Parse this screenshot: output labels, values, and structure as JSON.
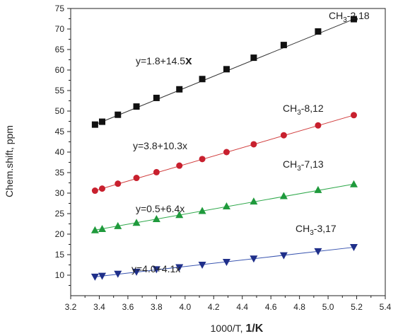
{
  "chart_data": {
    "type": "scatter",
    "xlabel": "1000/T,",
    "xlabel_unit": "1/K",
    "ylabel": "Chem.shift, ppm",
    "xlim": [
      3.2,
      5.4
    ],
    "ylim": [
      5,
      75
    ],
    "x_ticks": [
      "3.2",
      "3.4",
      "3.6",
      "3.8",
      "4.0",
      "4.2",
      "4.4",
      "4.6",
      "4.8",
      "5.0",
      "5.2",
      "5.4"
    ],
    "y_ticks": [
      "10",
      "15",
      "20",
      "25",
      "30",
      "35",
      "40",
      "45",
      "50",
      "55",
      "60",
      "65",
      "70",
      "75"
    ],
    "grid": false,
    "x": [
      3.37,
      3.42,
      3.53,
      3.66,
      3.8,
      3.96,
      4.12,
      4.29,
      4.48,
      4.69,
      4.93,
      5.18
    ],
    "series": [
      {
        "name": "CH3-2,18",
        "label_main": "CH",
        "label_sub": "3",
        "label_rest": "-2,18",
        "equation_main": "y=1.8+14.5",
        "equation_x": "x",
        "marker": "square",
        "color": "#111111",
        "line_color": "#333333",
        "values": [
          46.7,
          47.4,
          49.1,
          51.1,
          53.2,
          55.3,
          57.8,
          60.2,
          63.0,
          66.1,
          69.4,
          72.4
        ]
      },
      {
        "name": "CH3-8,12",
        "label_main": "CH",
        "label_sub": "3",
        "label_rest": "-8,12",
        "equation_main": "y=3.8+10.3x",
        "marker": "circle",
        "color": "#c8202e",
        "line_color": "#d03a3a",
        "values": [
          30.6,
          31.1,
          32.3,
          33.7,
          35.1,
          36.7,
          38.3,
          40.0,
          41.9,
          44.1,
          46.5,
          49.0
        ]
      },
      {
        "name": "CH3-7,13",
        "label_main": "CH",
        "label_sub": "3",
        "label_rest": "-7,13",
        "equation_main": "y=0.5+6.4x",
        "marker": "triangle-up",
        "color": "#1f9a3c",
        "line_color": "#2ea84a",
        "values": [
          21.0,
          21.3,
          22.0,
          22.8,
          23.7,
          24.7,
          25.7,
          26.8,
          28.0,
          29.3,
          30.8,
          32.2
        ]
      },
      {
        "name": "CH3-3,17",
        "label_main": "CH",
        "label_sub": "3",
        "label_rest": "-3,17",
        "equation_main": "y=4.0+4.1x",
        "marker": "triangle-down",
        "color": "#1f2f8a",
        "line_color": "#3a55b0",
        "values": [
          9.6,
          9.8,
          10.3,
          10.8,
          11.4,
          11.9,
          12.5,
          13.2,
          14.0,
          14.8,
          15.8,
          16.8
        ]
      }
    ]
  }
}
